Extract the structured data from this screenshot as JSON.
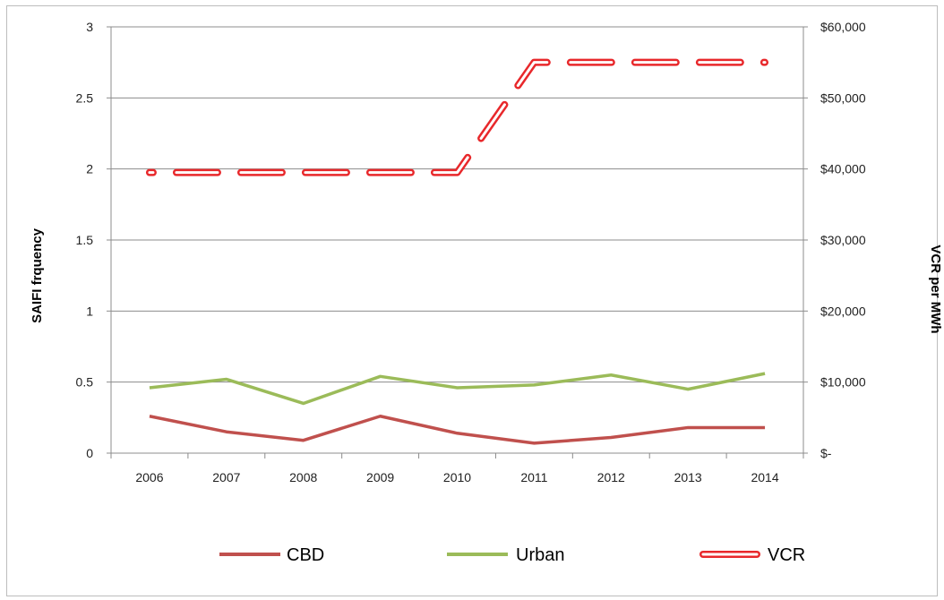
{
  "chart_data": {
    "type": "line",
    "categories": [
      "2006",
      "2007",
      "2008",
      "2009",
      "2010",
      "2011",
      "2012",
      "2013",
      "2014"
    ],
    "ylabel": "SAIFI  frquency",
    "y2label": "VCR  per MWh",
    "ylim": [
      0,
      3
    ],
    "y2lim": [
      0,
      60000
    ],
    "yticks": [
      "0",
      "0.5",
      "1",
      "1.5",
      "2",
      "2.5",
      "3"
    ],
    "y2ticks": [
      "$-",
      "$10,000",
      "$20,000",
      "$30,000",
      "$40,000",
      "$50,000",
      "$60,000"
    ],
    "grid": true,
    "legend_position": "bottom",
    "series": [
      {
        "name": "CBD",
        "axis": "left",
        "color": "#c0504d",
        "style": "solid",
        "values": [
          0.26,
          0.15,
          0.09,
          0.26,
          0.14,
          0.07,
          0.11,
          0.18,
          0.18
        ]
      },
      {
        "name": "Urban",
        "axis": "left",
        "color": "#9bbb59",
        "style": "solid",
        "values": [
          0.46,
          0.52,
          0.35,
          0.54,
          0.46,
          0.48,
          0.55,
          0.45,
          0.56
        ]
      },
      {
        "name": "VCR",
        "axis": "right",
        "color": "#e8282b",
        "style": "dashed-hollow",
        "values": [
          39500,
          39500,
          39500,
          39500,
          39500,
          55000,
          55000,
          55000,
          55000
        ]
      }
    ]
  }
}
